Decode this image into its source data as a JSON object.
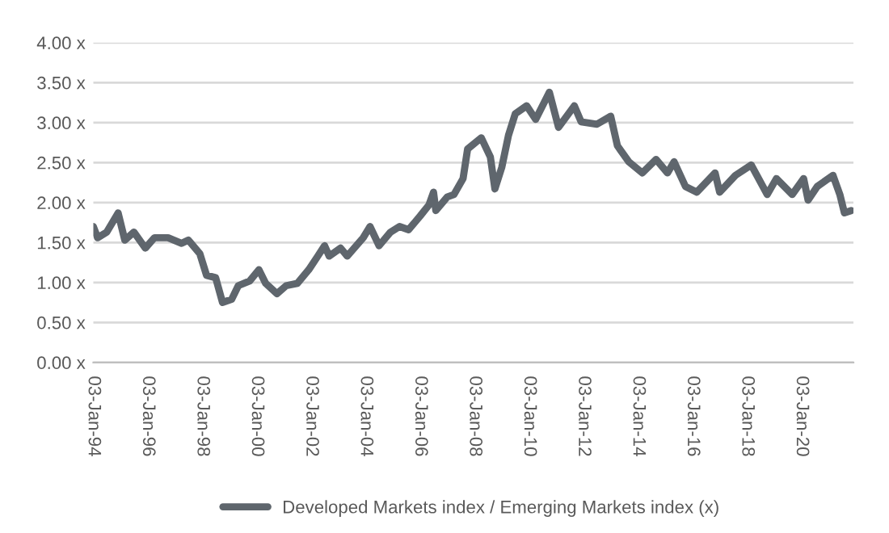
{
  "chart_data": {
    "type": "line",
    "x": [
      "1994-01-03",
      "1994-03",
      "1994-07",
      "1994-12",
      "1995-03",
      "1995-07",
      "1995-12",
      "1996-04",
      "1996-10",
      "1997-04",
      "1997-07",
      "1997-12",
      "1998-03",
      "1998-07",
      "1998-10",
      "1999-02",
      "1999-05",
      "1999-10",
      "2000-02",
      "2000-05",
      "2000-10",
      "2001-02",
      "2001-07",
      "2001-12",
      "2002-04",
      "2002-07",
      "2002-09",
      "2003-02",
      "2003-05",
      "2003-12",
      "2004-03",
      "2004-07",
      "2004-12",
      "2005-04",
      "2005-08",
      "2006-01",
      "2006-05",
      "2006-07",
      "2006-08",
      "2007-01",
      "2007-04",
      "2007-08",
      "2007-10",
      "2008-04",
      "2008-08",
      "2008-10",
      "2009-01",
      "2009-04",
      "2009-07",
      "2009-12",
      "2010-04",
      "2010-10",
      "2011-02",
      "2011-09",
      "2011-12",
      "2012-07",
      "2013-01",
      "2013-04",
      "2013-09",
      "2014-03",
      "2014-09",
      "2015-02",
      "2015-05",
      "2015-10",
      "2016-03",
      "2016-11",
      "2017-01",
      "2017-08",
      "2018-03",
      "2018-10",
      "2019-02",
      "2019-09",
      "2020-02",
      "2020-04",
      "2020-08",
      "2021-03",
      "2021-06",
      "2021-08",
      "2021-11"
    ],
    "series": [
      {
        "name": "Developed Markets index / Emerging Markets index (x)",
        "color": "#5f666d",
        "values": [
          1.7,
          1.56,
          1.63,
          1.87,
          1.53,
          1.63,
          1.43,
          1.56,
          1.56,
          1.49,
          1.53,
          1.36,
          1.09,
          1.06,
          0.75,
          0.79,
          0.96,
          1.02,
          1.16,
          0.99,
          0.86,
          0.96,
          0.99,
          1.16,
          1.33,
          1.46,
          1.33,
          1.43,
          1.33,
          1.56,
          1.7,
          1.46,
          1.63,
          1.7,
          1.66,
          1.83,
          1.97,
          2.13,
          1.9,
          2.07,
          2.1,
          2.3,
          2.67,
          2.81,
          2.57,
          2.17,
          2.44,
          2.84,
          3.11,
          3.21,
          3.04,
          3.38,
          2.94,
          3.21,
          3.01,
          2.98,
          3.08,
          2.71,
          2.51,
          2.37,
          2.54,
          2.37,
          2.51,
          2.2,
          2.13,
          2.37,
          2.13,
          2.34,
          2.47,
          2.1,
          2.3,
          2.1,
          2.3,
          2.03,
          2.2,
          2.34,
          2.1,
          1.87,
          1.9
        ]
      }
    ],
    "xlim": [
      "1994-01-03",
      "2021-11-30"
    ],
    "xticks": [
      {
        "value": "1994-01-03",
        "label": "03-Jan-94"
      },
      {
        "value": "1996-01-03",
        "label": "03-Jan-96"
      },
      {
        "value": "1998-01-03",
        "label": "03-Jan-98"
      },
      {
        "value": "2000-01-03",
        "label": "03-Jan-00"
      },
      {
        "value": "2002-01-03",
        "label": "03-Jan-02"
      },
      {
        "value": "2004-01-03",
        "label": "03-Jan-04"
      },
      {
        "value": "2006-01-03",
        "label": "03-Jan-06"
      },
      {
        "value": "2008-01-03",
        "label": "03-Jan-08"
      },
      {
        "value": "2010-01-03",
        "label": "03-Jan-10"
      },
      {
        "value": "2012-01-03",
        "label": "03-Jan-12"
      },
      {
        "value": "2014-01-03",
        "label": "03-Jan-14"
      },
      {
        "value": "2016-01-03",
        "label": "03-Jan-16"
      },
      {
        "value": "2018-01-03",
        "label": "03-Jan-18"
      },
      {
        "value": "2020-01-03",
        "label": "03-Jan-20"
      }
    ],
    "ylim": [
      0,
      4
    ],
    "yticks": [
      {
        "value": 0,
        "label": "0.00 x"
      },
      {
        "value": 0.5,
        "label": "0.50 x"
      },
      {
        "value": 1,
        "label": "1.00 x"
      },
      {
        "value": 1.5,
        "label": "1.50 x"
      },
      {
        "value": 2,
        "label": "2.00 x"
      },
      {
        "value": 2.5,
        "label": "2.50 x"
      },
      {
        "value": 3,
        "label": "3.00 x"
      },
      {
        "value": 3.5,
        "label": "3.50 x"
      },
      {
        "value": 4,
        "label": "4.00 x"
      }
    ],
    "grid": "y",
    "legend": "bottom",
    "line_style": "solid"
  }
}
